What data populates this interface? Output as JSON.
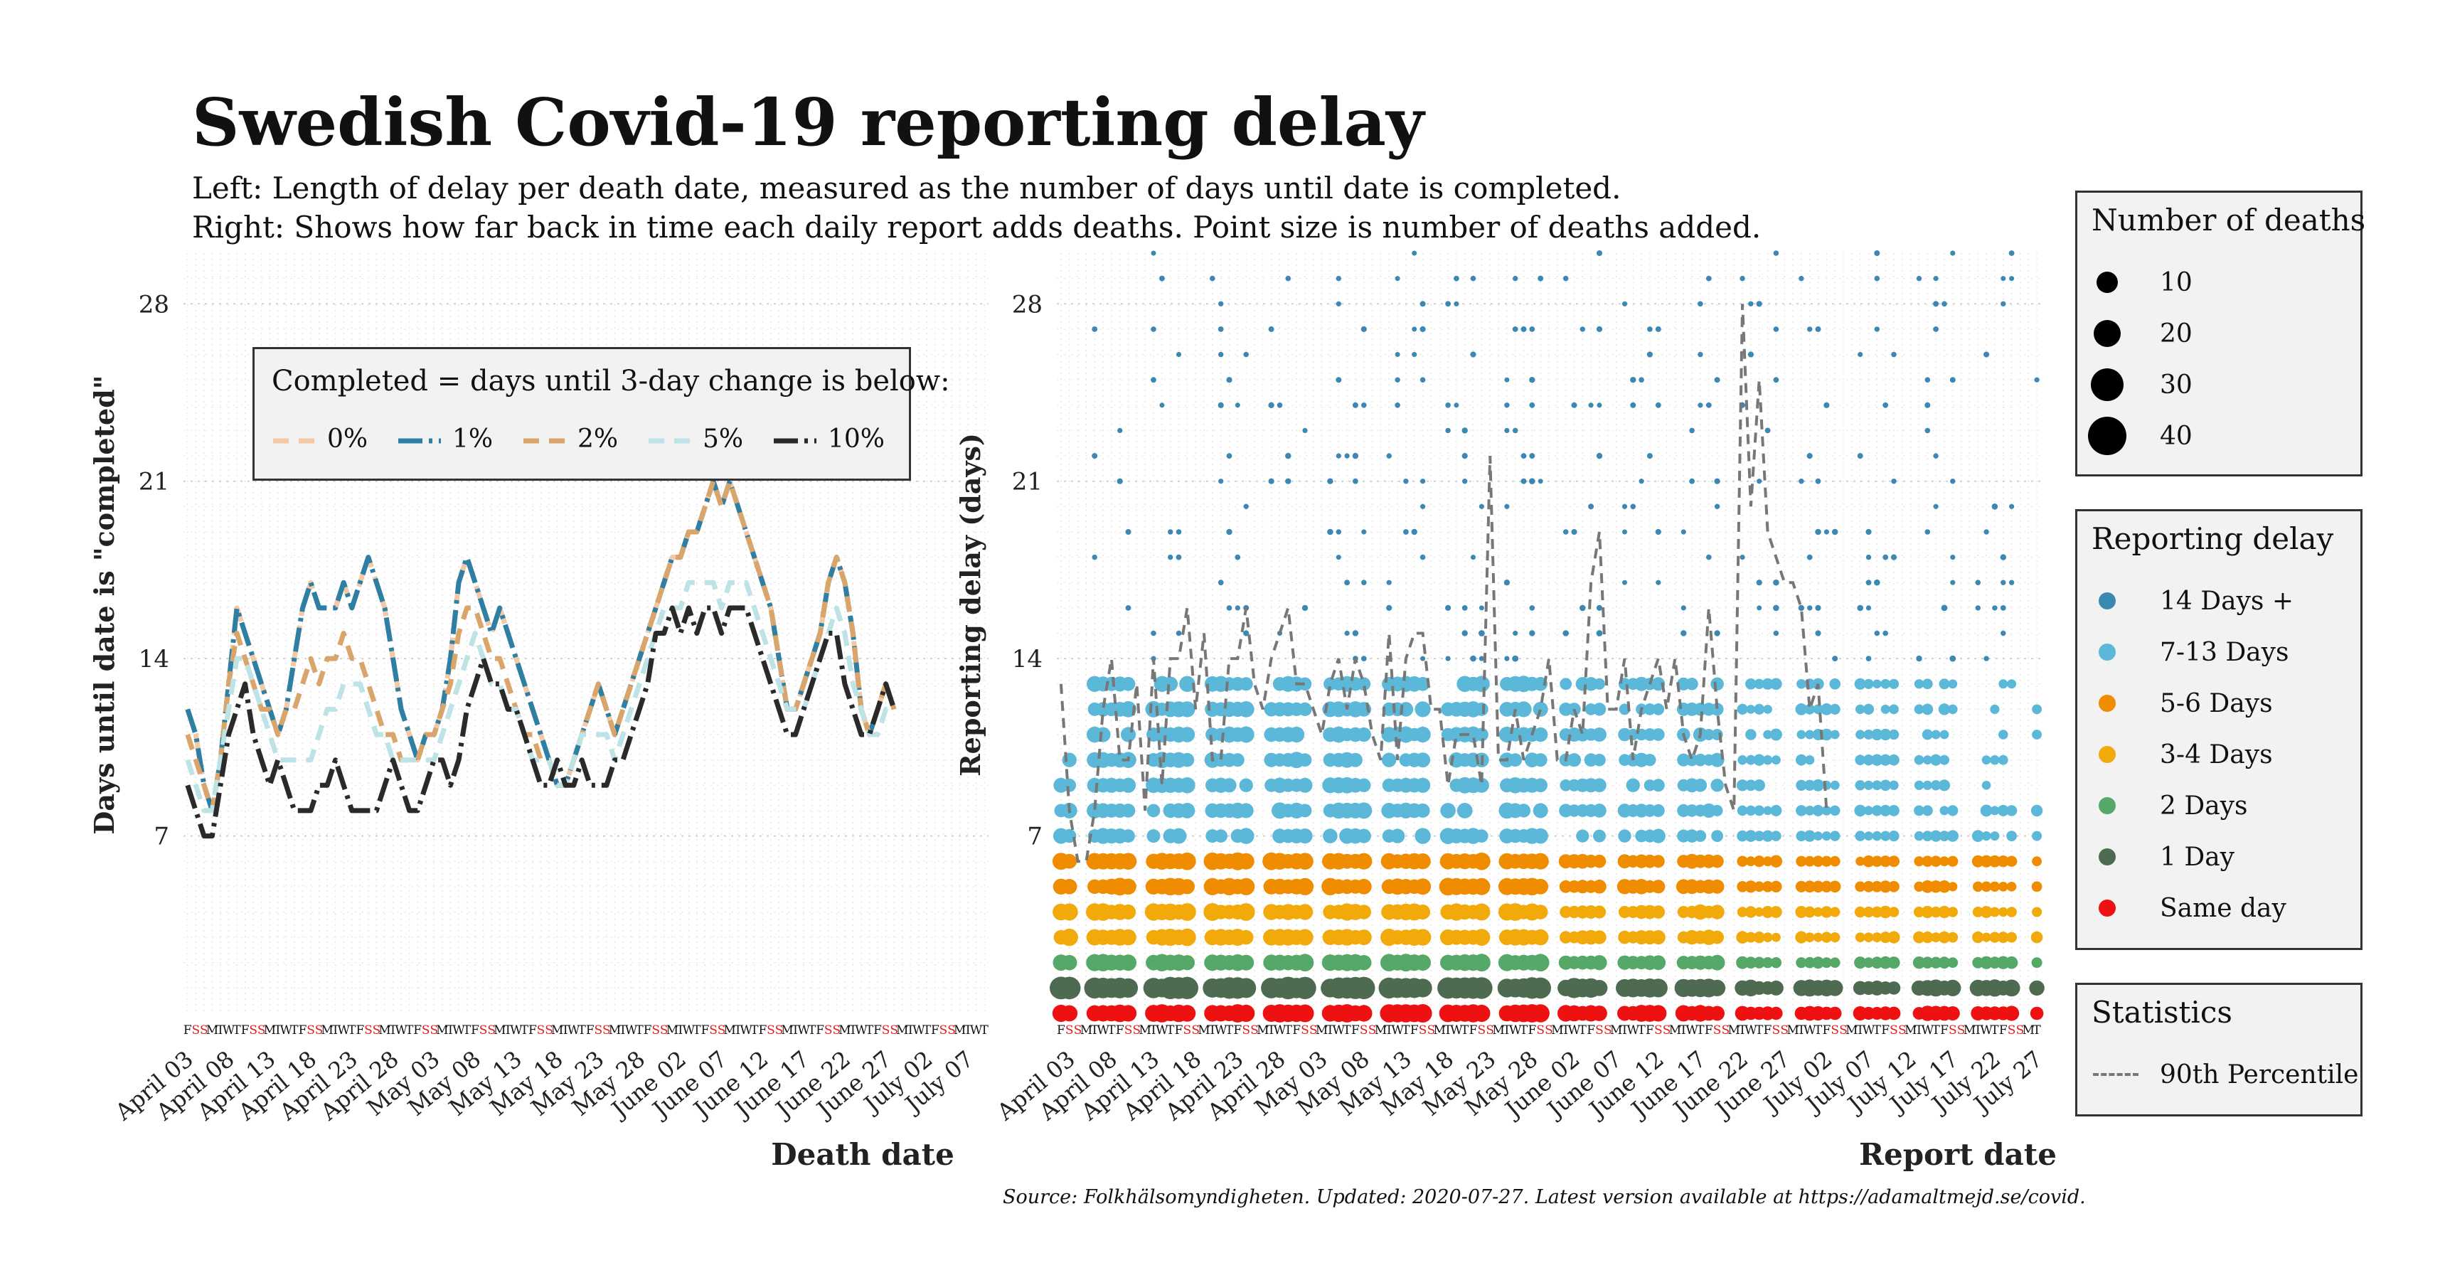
{
  "title": "Swedish Covid-19 reporting delay",
  "subtitle_lines": [
    "Left: Length of delay per death date, measured as the number of days until date is completed.",
    "Right: Shows how far back in time each daily report adds deaths. Point size is number of deaths added."
  ],
  "source": "Source: Folkhälsomyndigheten. Updated: 2020-07-27. Latest version available at https://adamaltmejd.se/covid.",
  "weekday_sequence": [
    "M",
    "T",
    "W",
    "T",
    "F",
    "S",
    "S"
  ],
  "colors": {
    "weekend_letter": "#e31a1c",
    "weekday_letter": "#111111",
    "grid": "#d9d9d9",
    "percentile_line": "#777777"
  },
  "chart_data": [
    {
      "type": "line",
      "panel": "left",
      "xlabel": "Death date",
      "ylabel": "Days until date is \"completed\"",
      "ylim": [
        0,
        30
      ],
      "yticks": [
        7,
        14,
        21,
        28
      ],
      "x_start": "2020-04-03",
      "x_end": "2020-07-09",
      "first_weekday": "F",
      "x_tick_labels": [
        "April 03",
        "April 08",
        "April 13",
        "April 18",
        "April 23",
        "April 28",
        "May 03",
        "May 08",
        "May 13",
        "May 18",
        "May 23",
        "May 28",
        "June 02",
        "June 07",
        "June 12",
        "June 17",
        "June 22",
        "June 27",
        "July 02",
        "July 07"
      ],
      "legend_title": "Completed = days until 3-day change is below:",
      "series": [
        {
          "name": "0%",
          "color": "#f3c8a6",
          "dash": "22 14",
          "values": [
            12,
            11,
            9,
            8,
            10,
            13,
            16,
            15,
            14,
            13,
            12,
            11,
            12,
            14,
            16,
            17,
            16,
            16,
            16,
            17,
            16,
            17,
            18,
            17,
            16,
            14,
            12,
            11,
            10,
            11,
            11,
            12,
            14,
            17,
            18,
            17,
            16,
            15,
            16,
            15,
            14,
            13,
            12,
            11,
            10,
            9,
            9,
            10,
            11,
            12,
            13,
            12,
            11,
            12,
            13,
            14,
            15,
            16,
            17,
            18,
            18,
            19,
            19,
            20,
            21,
            20,
            21,
            20,
            19,
            18,
            17,
            16,
            14,
            12,
            12,
            13,
            14,
            15,
            17,
            18,
            17,
            15,
            12,
            11,
            12,
            13,
            12
          ]
        },
        {
          "name": "1%",
          "color": "#2e7fa3",
          "dash": "34 9 5 9",
          "values": [
            12,
            11,
            9,
            8,
            10,
            13,
            16,
            15,
            14,
            13,
            12,
            11,
            12,
            14,
            16,
            17,
            16,
            16,
            16,
            17,
            16,
            17,
            18,
            17,
            16,
            14,
            12,
            11,
            10,
            11,
            11,
            12,
            14,
            17,
            18,
            17,
            16,
            15,
            16,
            15,
            14,
            13,
            12,
            11,
            10,
            9,
            9,
            10,
            11,
            12,
            13,
            12,
            11,
            12,
            13,
            14,
            15,
            16,
            17,
            18,
            18,
            19,
            19,
            20,
            21,
            20,
            21,
            20,
            19,
            18,
            17,
            16,
            14,
            12,
            12,
            13,
            14,
            15,
            17,
            18,
            17,
            15,
            12,
            11,
            12,
            13,
            12
          ]
        },
        {
          "name": "2%",
          "color": "#d9a56b",
          "dash": "22 14",
          "values": [
            11,
            10,
            9,
            8,
            10,
            13,
            15,
            14,
            13,
            12,
            12,
            11,
            12,
            12,
            13,
            14,
            13,
            14,
            14,
            15,
            14,
            14,
            13,
            12,
            11,
            11,
            10,
            10,
            10,
            11,
            11,
            12,
            13,
            15,
            16,
            16,
            15,
            14,
            14,
            13,
            12,
            11,
            11,
            10,
            10,
            9,
            9,
            10,
            11,
            12,
            13,
            12,
            11,
            12,
            13,
            14,
            15,
            16,
            17,
            18,
            18,
            19,
            19,
            20,
            21,
            20,
            21,
            20,
            19,
            18,
            17,
            16,
            14,
            12,
            12,
            13,
            14,
            15,
            17,
            18,
            17,
            15,
            12,
            11,
            12,
            13,
            12
          ]
        },
        {
          "name": "5%",
          "color": "#bde3e6",
          "dash": "22 14",
          "values": [
            10,
            9,
            8,
            8,
            10,
            12,
            14,
            14,
            13,
            12,
            11,
            10,
            10,
            10,
            10,
            10,
            11,
            12,
            12,
            13,
            13,
            13,
            12,
            11,
            11,
            10,
            10,
            10,
            10,
            10,
            10,
            11,
            12,
            13,
            14,
            15,
            14,
            13,
            13,
            12,
            12,
            11,
            10,
            10,
            10,
            9,
            9,
            10,
            11,
            11,
            11,
            11,
            10,
            11,
            12,
            13,
            14,
            15,
            16,
            16,
            16,
            17,
            17,
            17,
            17,
            16,
            17,
            17,
            17,
            16,
            15,
            14,
            13,
            12,
            12,
            12,
            13,
            14,
            15,
            16,
            15,
            13,
            12,
            11,
            11,
            12,
            12
          ]
        },
        {
          "name": "10%",
          "color": "#2a2a2a",
          "dash": "34 9 5 9",
          "values": [
            9,
            8,
            7,
            7,
            9,
            11,
            12,
            13,
            11,
            10,
            9,
            10,
            9,
            8,
            8,
            8,
            9,
            9,
            10,
            9,
            8,
            8,
            8,
            8,
            9,
            10,
            9,
            8,
            8,
            9,
            10,
            10,
            9,
            10,
            12,
            13,
            14,
            13,
            13,
            12,
            12,
            11,
            10,
            9,
            9,
            10,
            9,
            9,
            10,
            9,
            9,
            9,
            10,
            10,
            11,
            12,
            13,
            15,
            15,
            16,
            15,
            16,
            15,
            16,
            16,
            15,
            16,
            16,
            16,
            15,
            14,
            13,
            12,
            11,
            11,
            12,
            13,
            14,
            15,
            15,
            13,
            12,
            11,
            11,
            12,
            13,
            12
          ]
        }
      ]
    },
    {
      "type": "scatter",
      "panel": "right",
      "xlabel": "Report date",
      "ylabel": "Reporting delay (days)",
      "ylim": [
        0,
        30
      ],
      "yticks": [
        7,
        14,
        21,
        28
      ],
      "x_start": "2020-04-02",
      "x_end": "2020-07-27",
      "first_weekday": "F",
      "x_tick_labels": [
        "April 03",
        "April 08",
        "April 13",
        "April 18",
        "April 23",
        "April 28",
        "May 03",
        "May 08",
        "May 13",
        "May 18",
        "May 23",
        "May 28",
        "June 02",
        "June 07",
        "June 12",
        "June 17",
        "June 22",
        "June 27",
        "July 02",
        "July 07",
        "July 12",
        "July 17",
        "July 22",
        "July 27"
      ],
      "size_legend_title": "Number of deaths",
      "size_legend": [
        10,
        20,
        30,
        40
      ],
      "color_legend_title": "Reporting delay",
      "categories": [
        {
          "label": "14 Days +",
          "color": "#3d88b3",
          "min_delay": 14,
          "max_delay": 30
        },
        {
          "label": "7-13 Days",
          "color": "#5bb8d8",
          "min_delay": 7,
          "max_delay": 13
        },
        {
          "label": "5-6 Days",
          "color": "#f08c00",
          "min_delay": 5,
          "max_delay": 6
        },
        {
          "label": "3-4 Days",
          "color": "#f2aa0a",
          "min_delay": 3,
          "max_delay": 4
        },
        {
          "label": "2 Days",
          "color": "#55a868",
          "min_delay": 2,
          "max_delay": 2
        },
        {
          "label": "1 Day",
          "color": "#4e6b52",
          "min_delay": 1,
          "max_delay": 1
        },
        {
          "label": "Same day",
          "color": "#ee1111",
          "min_delay": 0,
          "max_delay": 0
        }
      ],
      "reports_without_data_weekday": [
        "S",
        "S"
      ],
      "statistics_legend_title": "Statistics",
      "percentile_label": "90th Percentile",
      "p90_by_report": [
        13,
        8,
        6,
        6,
        8,
        12,
        14,
        10,
        10,
        13,
        8,
        14,
        9,
        14,
        14,
        16,
        12,
        15,
        10,
        10,
        14,
        14,
        16,
        13,
        12,
        14,
        15,
        16,
        13,
        13,
        12,
        11,
        13,
        14,
        12,
        14,
        13,
        11,
        10,
        15,
        10,
        14,
        15,
        15,
        12,
        12,
        9,
        11,
        11,
        11,
        9,
        22,
        10,
        10,
        12,
        10,
        11,
        12,
        14,
        10,
        10,
        12,
        11,
        17,
        19,
        12,
        12,
        14,
        10,
        12,
        13,
        14,
        12,
        14,
        11,
        10,
        11,
        16,
        12,
        9,
        8,
        28,
        20,
        25,
        19,
        18,
        17,
        17,
        16,
        12,
        13,
        8
      ]
    }
  ]
}
